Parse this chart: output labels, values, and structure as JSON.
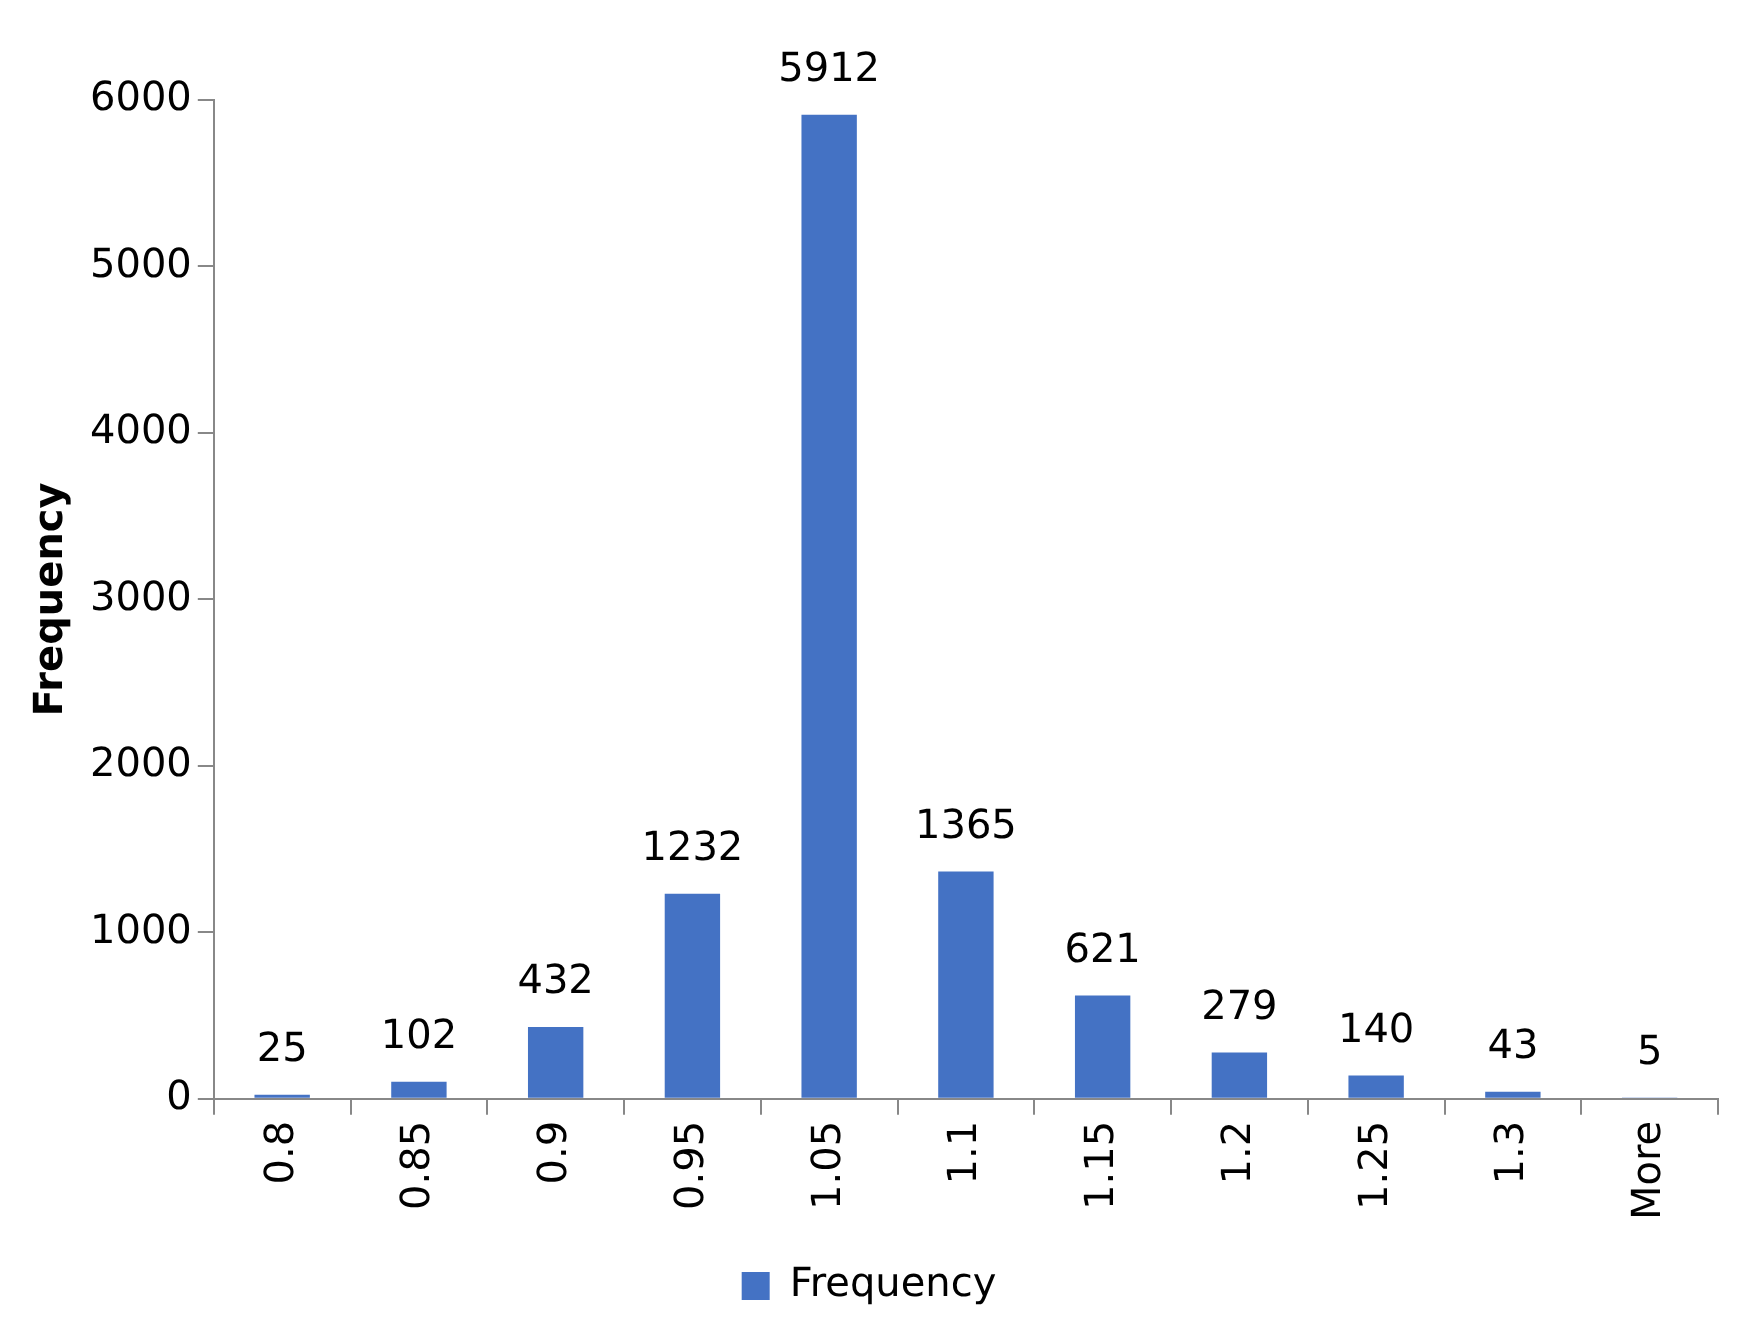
{
  "chart_data": {
    "type": "bar",
    "ylabel": "Frequency",
    "categories": [
      "0.8",
      "0.85",
      "0.9",
      "0.95",
      "1.05",
      "1.1",
      "1.15",
      "1.2",
      "1.25",
      "1.3",
      "More"
    ],
    "series": [
      {
        "name": "Frequency",
        "color": "#4472c4",
        "values": [
          25,
          102,
          432,
          1232,
          5912,
          1365,
          621,
          279,
          140,
          43,
          5
        ]
      }
    ],
    "ylim": [
      0,
      6000
    ],
    "yticks": [
      0,
      1000,
      2000,
      3000,
      4000,
      5000,
      6000
    ],
    "grid": false,
    "legend": "bottom",
    "data_labels": true
  }
}
